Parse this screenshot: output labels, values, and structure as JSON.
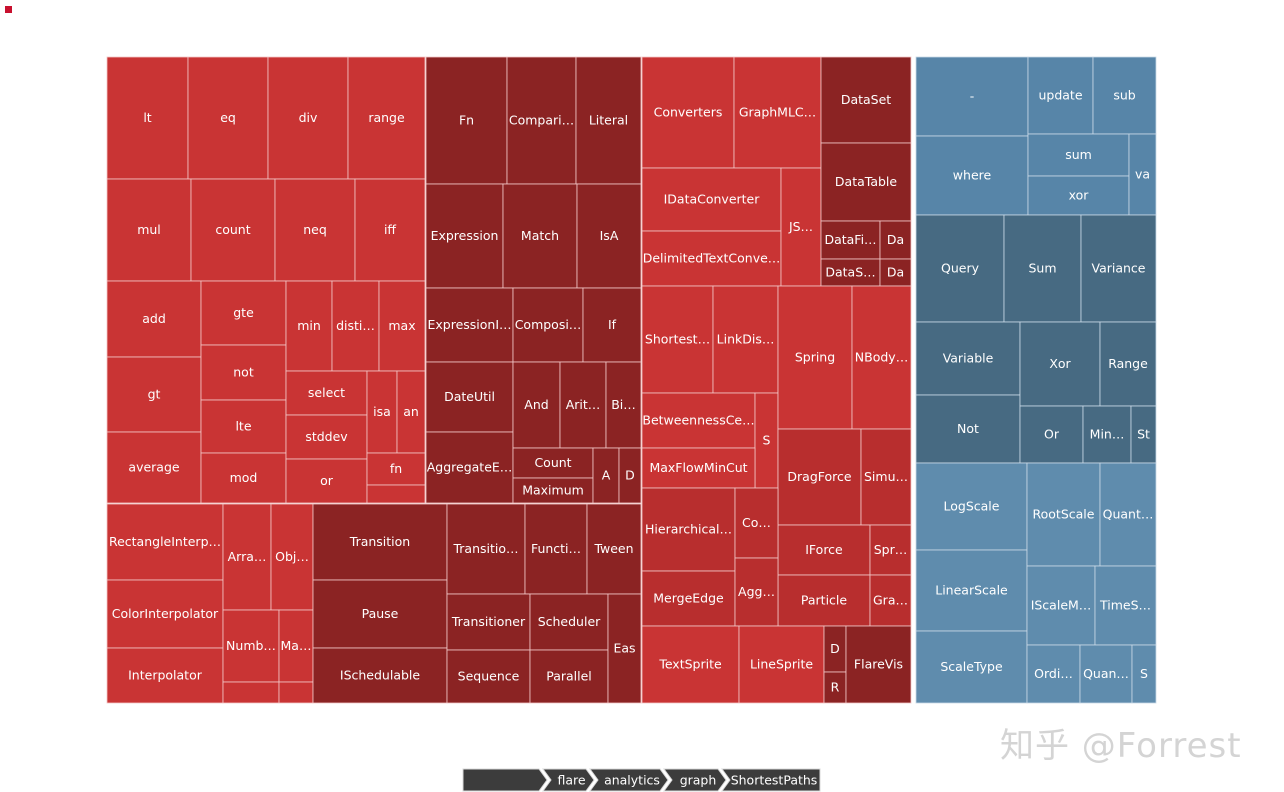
{
  "chart_data": {
    "type": "treemap",
    "colors": {
      "red": "#c93434",
      "dark_red": "#8b2323",
      "mid_red": "#b82e2e",
      "blue": "#5785a8",
      "steel": "#476a82",
      "light_blue": "#5f8cad",
      "stroke": "#f3c8c8",
      "crumb": "#3c3c3c"
    },
    "watermark": "知乎 @Forrest",
    "breadcrumb": [
      "",
      "flare",
      "analytics",
      "graph",
      "ShortestPaths"
    ]
  }
}
